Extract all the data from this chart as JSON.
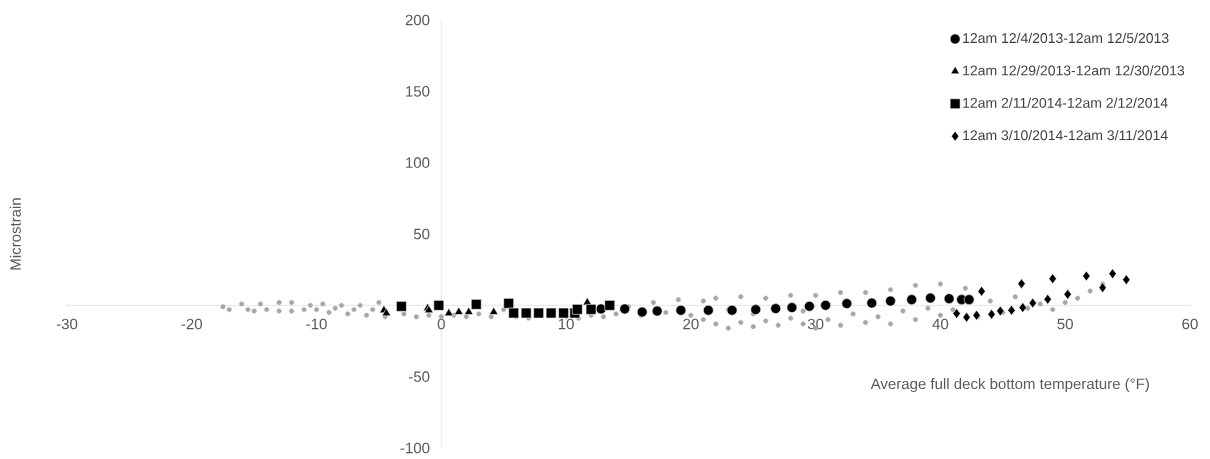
{
  "chart_data": {
    "type": "scatter",
    "xlabel": "Average full deck bottom temperature (°F)",
    "ylabel": "Microstrain",
    "xlim": [
      -30,
      60
    ],
    "xticks": [
      -30,
      -20,
      -10,
      0,
      10,
      20,
      30,
      40,
      50,
      60
    ],
    "ylim": [
      -100,
      200
    ],
    "yticks": [
      -100,
      -50,
      50,
      100,
      150,
      200
    ],
    "legend": "top right",
    "series": [
      {
        "color": "#a6a6a6",
        "marker": "circle",
        "x": [
          -17.5,
          -17,
          -16,
          -15.5,
          -15,
          -14.5,
          -14,
          -13,
          -13,
          -12,
          -12,
          -11,
          -10.5,
          -10,
          -9.5,
          -9,
          -8.5,
          -8,
          -7.5,
          -7,
          -6.5,
          -6,
          -5.5,
          -5,
          -4.5,
          -3,
          -2,
          -1,
          0,
          1,
          2,
          3,
          4,
          5,
          6,
          7,
          8,
          9,
          10,
          11,
          12,
          13,
          14,
          15,
          16,
          17,
          18,
          19,
          20,
          21,
          21,
          22,
          22,
          23,
          23,
          24,
          24,
          25,
          25,
          26,
          26,
          27,
          27,
          28,
          28,
          29,
          29,
          30,
          30,
          31,
          32,
          32,
          33,
          34,
          34,
          35,
          36,
          36,
          37,
          38,
          38,
          39,
          40,
          40,
          41,
          42,
          43,
          44,
          45,
          46,
          47,
          48,
          49,
          50,
          51,
          52,
          53
        ],
        "values": [
          -1,
          -3,
          1,
          -3,
          -4,
          1,
          -3,
          -4,
          2,
          -4,
          2,
          -3,
          0,
          -3,
          1,
          -5,
          -2,
          0,
          -6,
          -3,
          0,
          -7,
          -3,
          2,
          -8,
          -6,
          -8,
          -7,
          -8,
          -7,
          -8,
          -6,
          -8,
          -3,
          -8,
          -9,
          -7,
          -4,
          -8,
          -9,
          -7,
          -8,
          -6,
          -1,
          -7,
          2,
          -5,
          4,
          -7,
          -10,
          3,
          -13,
          5,
          -16,
          -3,
          -12,
          6,
          -15,
          -6,
          -11,
          5,
          -14,
          -2,
          -9,
          7,
          -13,
          -4,
          -16,
          7,
          -10,
          -14,
          9,
          -6,
          -12,
          9,
          -8,
          -13,
          11,
          -4,
          -10,
          14,
          -2,
          -7,
          15,
          -3,
          12,
          -8,
          3,
          -5,
          6,
          -2,
          1,
          -3,
          2,
          5,
          10,
          15
        ]
      },
      {
        "name": "12am 12/4/2013-12am 12/5/2013",
        "color": "#000000",
        "marker": "circle",
        "x": [
          12.8,
          14.7,
          16.1,
          17.3,
          19.2,
          21.4,
          23.3,
          25.2,
          26.8,
          28.1,
          29.5,
          30.8,
          32.5,
          34.5,
          36,
          37.7,
          39.2,
          40.7,
          41.7,
          42.3
        ],
        "values": [
          -2.5,
          -2.5,
          -4.7,
          -4,
          -3.5,
          -3.5,
          -3.5,
          -3,
          -2.3,
          -1.6,
          -0.7,
          0,
          1.2,
          1.6,
          3,
          4,
          5.1,
          4.7,
          4,
          4
        ]
      },
      {
        "name": "12am 12/29/2013-12am 12/30/2013",
        "color": "#000000",
        "marker": "triangle",
        "x": [
          -4.6,
          -4.4,
          -1.1,
          -1,
          0.6,
          1.4,
          2.2,
          4.2,
          11.7
        ],
        "values": [
          -3.5,
          -5.6,
          -2,
          -3.5,
          -5.6,
          -4.7,
          -4.7,
          -4.7,
          2
        ]
      },
      {
        "name": "12am 2/11/2014-12am 2/12/2014",
        "color": "#000000",
        "marker": "square",
        "x": [
          -3.2,
          -0.2,
          2.8,
          5.4,
          5.8,
          6.8,
          7.8,
          8.8,
          9.8,
          10.7,
          10.9,
          12,
          13.5
        ],
        "values": [
          -0.7,
          0,
          0.7,
          1.4,
          -5.4,
          -5.4,
          -5.4,
          -5.4,
          -5.4,
          -5.4,
          -2.8,
          -2.8,
          0
        ]
      },
      {
        "name": "12am 3/10/2014-12am 3/11/2014",
        "color": "#000000",
        "marker": "diamond",
        "x": [
          41.3,
          42.1,
          42.9,
          43.3,
          44.1,
          44.8,
          45.7,
          46.5,
          46.6,
          47.4,
          48.6,
          49,
          50.2,
          51.7,
          53,
          53.8,
          54.9
        ],
        "values": [
          -5.8,
          -8.4,
          -7,
          9.8,
          -6.3,
          -4,
          -3.5,
          15.2,
          -1.6,
          1.6,
          4.2,
          18.7,
          7.7,
          20.5,
          12.4,
          22.2,
          18
        ]
      }
    ]
  }
}
